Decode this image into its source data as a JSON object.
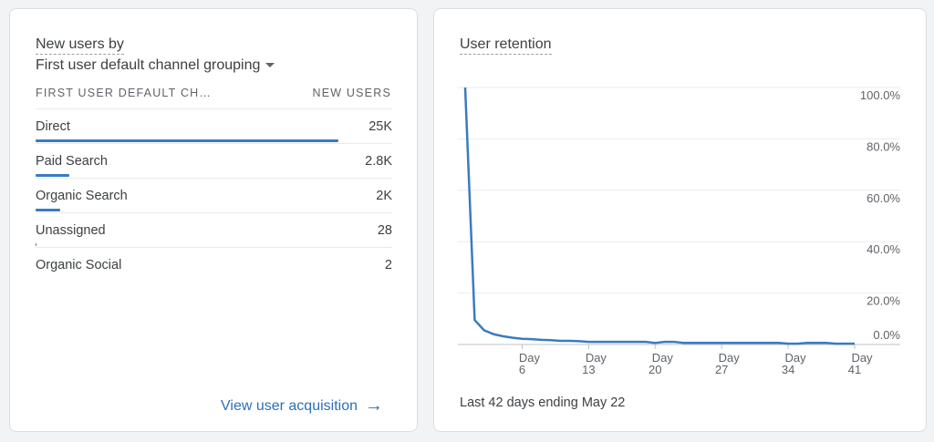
{
  "left_card": {
    "title": "New users by",
    "dimension": "First user default channel grouping",
    "columns": [
      "FIRST USER DEFAULT CH…",
      "NEW USERS"
    ],
    "rows": [
      {
        "label": "Direct",
        "value": "25K",
        "share": 0.85
      },
      {
        "label": "Paid Search",
        "value": "2.8K",
        "share": 0.095
      },
      {
        "label": "Organic Search",
        "value": "2K",
        "share": 0.068
      },
      {
        "label": "Unassigned",
        "value": "28",
        "share": 0.002
      },
      {
        "label": "Organic Social",
        "value": "2",
        "share": 0
      }
    ],
    "link": "View user acquisition"
  },
  "right_card": {
    "title": "User retention",
    "footer": "Last 42 days ending May 22"
  },
  "chart_data": {
    "type": "line",
    "title": "User retention",
    "series": [
      {
        "name": "Retention",
        "color": "#3a7bbf",
        "x_days": [
          0,
          1,
          2,
          3,
          4,
          5,
          6,
          7,
          8,
          9,
          10,
          11,
          12,
          13,
          14,
          15,
          16,
          17,
          18,
          19,
          20,
          21,
          22,
          23,
          24,
          25,
          26,
          27,
          28,
          29,
          30,
          31,
          32,
          33,
          34,
          35,
          36,
          37,
          38,
          39,
          40,
          41
        ],
        "values": [
          100,
          9.5,
          5.5,
          4,
          3.2,
          2.6,
          2.2,
          2.1,
          1.8,
          1.7,
          1.4,
          1.4,
          1.3,
          1,
          1,
          1,
          1,
          1,
          1,
          1,
          0.6,
          1,
          1,
          0.6,
          0.6,
          0.6,
          0.6,
          0.6,
          0.6,
          0.6,
          0.6,
          0.6,
          0.6,
          0.6,
          0.3,
          0.3,
          0.6,
          0.6,
          0.6,
          0.3,
          0.3,
          0.3
        ]
      }
    ],
    "y_ticks": [
      "0.0%",
      "20.0%",
      "40.0%",
      "60.0%",
      "80.0%",
      "100.0%"
    ],
    "x_ticks": [
      {
        "day": 6,
        "line1": "Day",
        "line2": "6"
      },
      {
        "day": 13,
        "line1": "Day",
        "line2": "13"
      },
      {
        "day": 20,
        "line1": "Day",
        "line2": "20"
      },
      {
        "day": 27,
        "line1": "Day",
        "line2": "27"
      },
      {
        "day": 34,
        "line1": "Day",
        "line2": "34"
      },
      {
        "day": 41,
        "line1": "Day",
        "line2": "41"
      }
    ],
    "ylim": [
      0,
      100
    ],
    "xlim": [
      0,
      41
    ],
    "grid": true
  }
}
